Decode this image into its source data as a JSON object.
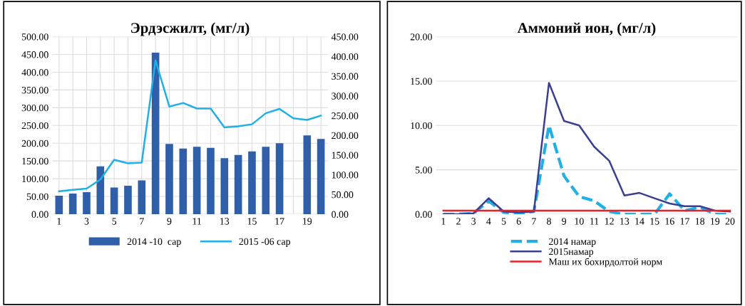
{
  "chart_data": [
    {
      "type": "bar",
      "title": "Эрдэсжилт, (мг/л)",
      "categories": [
        "1",
        null,
        "3",
        null,
        "5",
        null,
        "7",
        null,
        "9",
        null,
        "11",
        null,
        "13",
        null,
        "15",
        null,
        "17",
        null,
        "19",
        null
      ],
      "series": [
        {
          "name": "2014 -10  сар",
          "type": "bar",
          "color": "#2f5fa8",
          "values": [
            52,
            58,
            62,
            135,
            75,
            80,
            95,
            455,
            198,
            185,
            190,
            187,
            158,
            167,
            177,
            190,
            200,
            null,
            222,
            212
          ]
        },
        {
          "name": "2015 -06 сар",
          "type": "line",
          "axis": "y2",
          "color": "#1fb0e8",
          "values": [
            58,
            62,
            65,
            88,
            138,
            129,
            131,
            390,
            273,
            282,
            268,
            268,
            220,
            223,
            228,
            256,
            267,
            243,
            239,
            250
          ]
        }
      ],
      "ylim": [
        0,
        500
      ],
      "yticks": [
        {
          "value": 0,
          "label": "0.00"
        },
        {
          "value": 50,
          "label": "50.00"
        },
        {
          "value": 100,
          "label": "100.00"
        },
        {
          "value": 150,
          "label": "150.00"
        },
        {
          "value": 200,
          "label": "200.00"
        },
        {
          "value": 250,
          "label": "250.00"
        },
        {
          "value": 300,
          "label": "300.00"
        },
        {
          "value": 350,
          "label": "350.00"
        },
        {
          "value": 400,
          "label": "400.00"
        },
        {
          "value": 450,
          "label": "450.00"
        },
        {
          "value": 500,
          "label": "500.00"
        }
      ],
      "y2lim": [
        0,
        450
      ],
      "y2ticks": [
        {
          "value": 0,
          "label": "0.00"
        },
        {
          "value": 50,
          "label": "50.00"
        },
        {
          "value": 100,
          "label": "100.00"
        },
        {
          "value": 150,
          "label": "150.00"
        },
        {
          "value": 200,
          "label": "200.00"
        },
        {
          "value": 250,
          "label": "250.00"
        },
        {
          "value": 300,
          "label": "300.00"
        },
        {
          "value": 350,
          "label": "350.00"
        },
        {
          "value": 400,
          "label": "400.00"
        },
        {
          "value": 450,
          "label": "450.00"
        }
      ],
      "grid": true,
      "legend": "bottom"
    },
    {
      "type": "line",
      "title": "Аммоний ион, (мг/л)",
      "categories": [
        "1",
        "2",
        "3",
        "4",
        "5",
        "6",
        "7",
        "8",
        "9",
        "10",
        "11",
        "12",
        "13",
        "14",
        "15",
        "16",
        "17",
        "18",
        "19",
        "20"
      ],
      "series": [
        {
          "name": "2014 намар",
          "color": "#1fb0e8",
          "line_style": "dashed",
          "values": [
            0,
            0,
            0.1,
            1.5,
            0.2,
            0.1,
            0.3,
            10,
            4.3,
            2,
            1.5,
            0.3,
            0,
            0,
            0,
            2.3,
            0.4,
            0.8,
            0,
            0
          ]
        },
        {
          "name": "2015намар",
          "color": "#3a3f94",
          "line_style": "solid",
          "values": [
            0,
            0,
            0.1,
            1.8,
            0.3,
            0.2,
            0.3,
            14.8,
            10.5,
            10,
            7.6,
            6,
            2.1,
            2.4,
            1.8,
            1.2,
            0.9,
            0.9,
            0.4,
            0.3
          ]
        },
        {
          "name": "Маш их бохирдолтой норм",
          "color": "#e8202a",
          "line_style": "solid",
          "values": [
            0.4,
            0.4,
            0.4,
            0.4,
            0.4,
            0.4,
            0.4,
            0.4,
            0.4,
            0.4,
            0.4,
            0.4,
            0.4,
            0.4,
            0.4,
            0.4,
            0.4,
            0.4,
            0.4,
            0.4
          ]
        }
      ],
      "ylim": [
        0,
        20
      ],
      "yticks": [
        {
          "value": 0,
          "label": "0.00"
        },
        {
          "value": 5,
          "label": "5.00"
        },
        {
          "value": 10,
          "label": "10.00"
        },
        {
          "value": 15,
          "label": "15.00"
        },
        {
          "value": 20,
          "label": "20.00"
        }
      ],
      "grid": "y",
      "legend": "bottom"
    }
  ]
}
